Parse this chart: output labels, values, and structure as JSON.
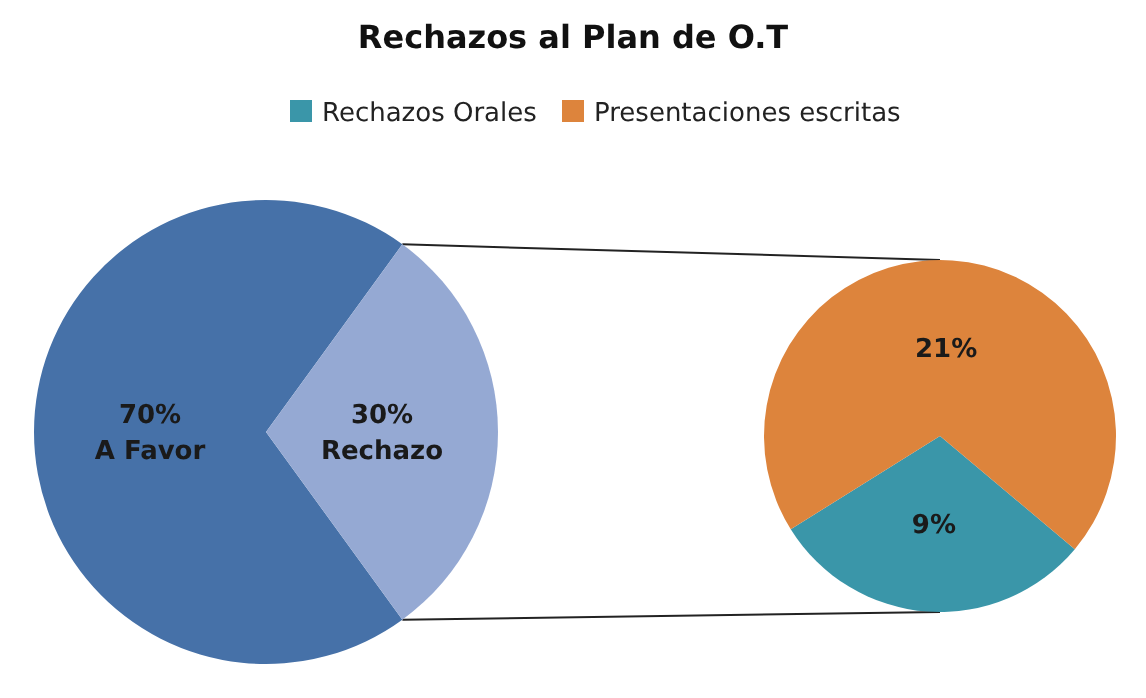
{
  "chart_data": [
    {
      "type": "pie",
      "title": "Rechazos al Plan de O.T",
      "categories": [
        "A Favor",
        "Rechazo"
      ],
      "values": [
        70,
        30
      ],
      "colors": [
        "#4671a8",
        "#95a9d3"
      ],
      "value_labels": [
        "70%",
        "30%"
      ],
      "legend": false
    },
    {
      "type": "pie",
      "categories": [
        "Rechazos Orales",
        "Presentaciones escritas"
      ],
      "values": [
        9,
        21
      ],
      "colors": [
        "#3a96a9",
        "#dd843c"
      ],
      "value_labels": [
        "9%",
        "21%"
      ],
      "legend": "top"
    }
  ]
}
